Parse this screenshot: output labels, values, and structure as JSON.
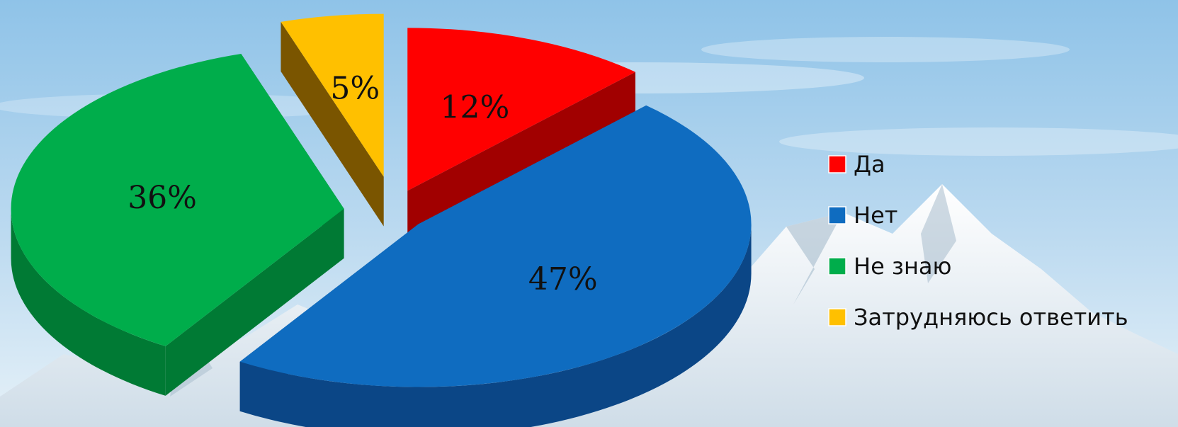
{
  "chart_data": {
    "type": "pie",
    "style": "3d-exploded",
    "legend_position": "right",
    "slices": [
      {
        "label": "Да",
        "value": 12,
        "text": "12%",
        "color": "#ff0000",
        "side": "#a10000"
      },
      {
        "label": "Нет",
        "value": 47,
        "text": "47%",
        "color": "#0f6cc0",
        "side": "#0b4686"
      },
      {
        "label": "Не знаю",
        "value": 36,
        "text": "36%",
        "color": "#00ad4b",
        "side": "#007a34"
      },
      {
        "label": "Затрудняюсь ответить",
        "value": 5,
        "text": "5%",
        "color": "#ffc000",
        "side": "#7a5500"
      }
    ]
  }
}
